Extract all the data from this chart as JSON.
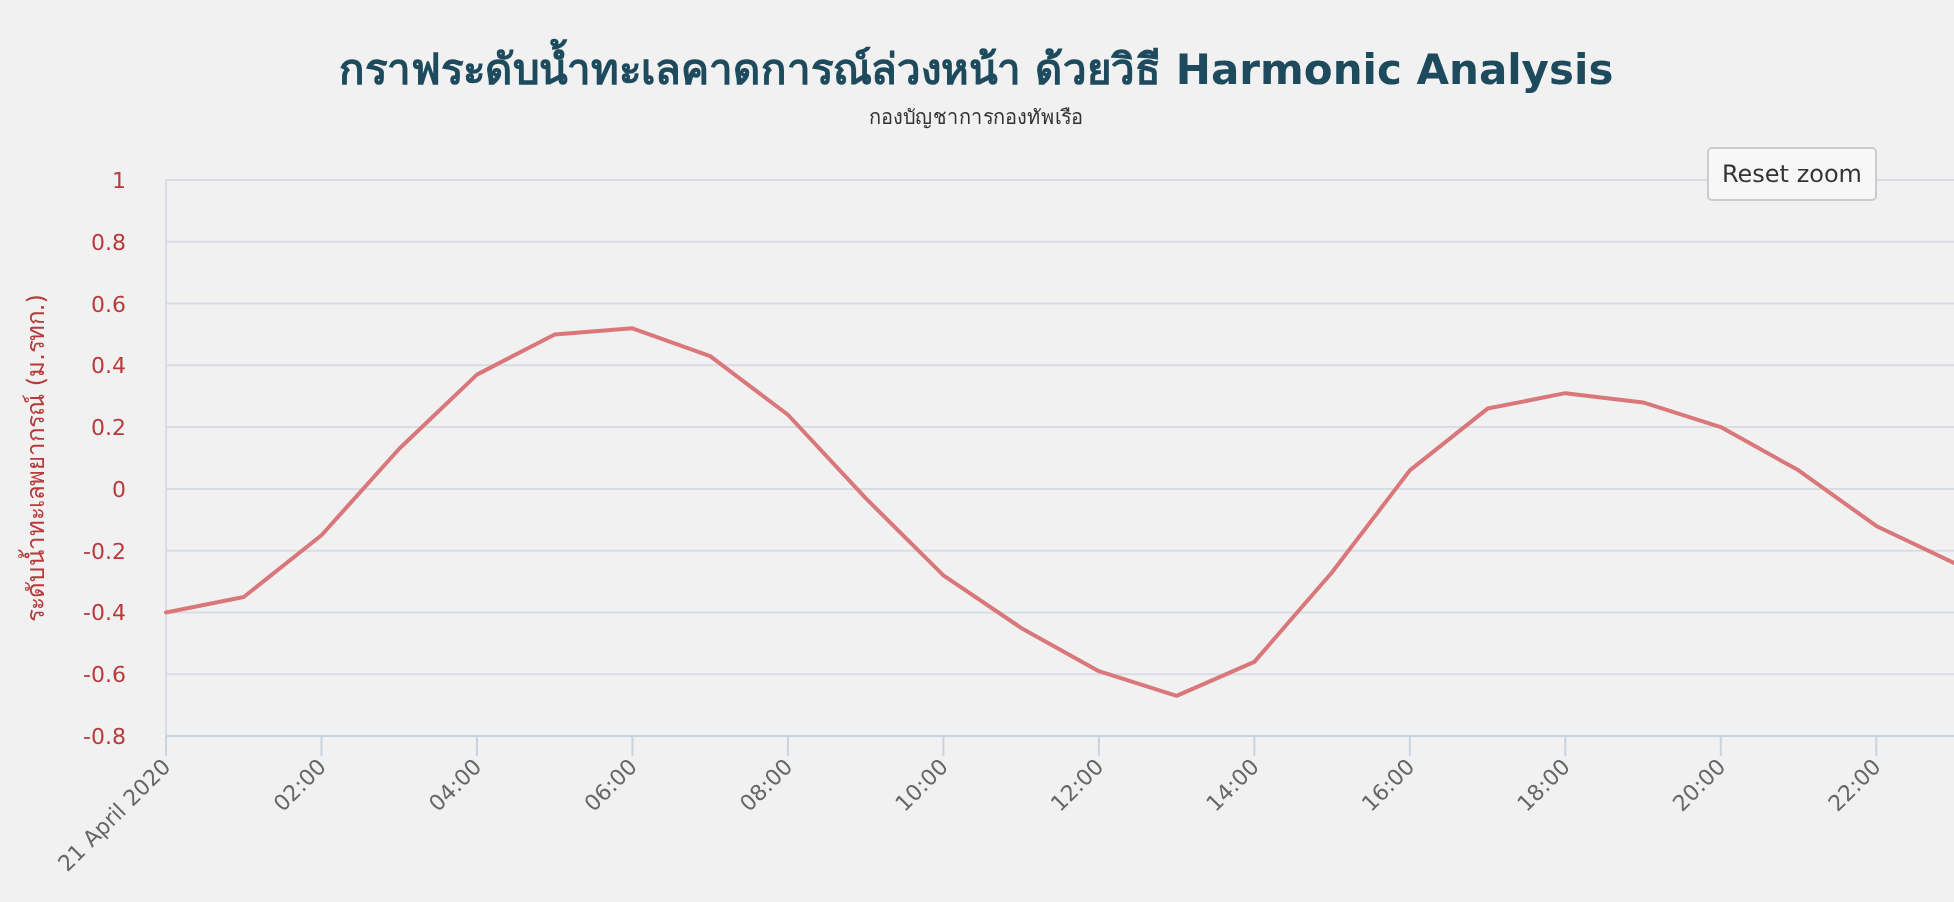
{
  "chart_data": {
    "type": "line",
    "title": "กราฟระดับน้ำทะเลคาดการณ์ล่วงหน้า ด้วยวิธี Harmonic Analysis",
    "subtitle": "กองบัญชาการกองทัพเรือ",
    "ylabel": "ระดับน้ำทะเลพยากรณ์ (ม.รทก.)",
    "annotations": [
      "Reset zoom"
    ],
    "x": [
      "2020-04-21T00:00",
      "2020-04-21T01:00",
      "2020-04-21T02:00",
      "2020-04-21T03:00",
      "2020-04-21T04:00",
      "2020-04-21T05:00",
      "2020-04-21T06:00",
      "2020-04-21T07:00",
      "2020-04-21T08:00",
      "2020-04-21T09:00",
      "2020-04-21T10:00",
      "2020-04-21T11:00",
      "2020-04-21T12:00",
      "2020-04-21T13:00",
      "2020-04-21T14:00",
      "2020-04-21T15:00",
      "2020-04-21T16:00",
      "2020-04-21T17:00",
      "2020-04-21T18:00",
      "2020-04-21T19:00",
      "2020-04-21T20:00",
      "2020-04-21T21:00",
      "2020-04-21T22:00",
      "2020-04-21T23:00"
    ],
    "series": [
      {
        "color": "#d9777b",
        "values": [
          -0.4,
          -0.35,
          -0.15,
          0.13,
          0.37,
          0.5,
          0.52,
          0.43,
          0.24,
          -0.03,
          -0.28,
          -0.45,
          -0.59,
          -0.67,
          -0.56,
          -0.27,
          0.06,
          0.26,
          0.31,
          0.28,
          0.2,
          0.06,
          -0.12,
          -0.24
        ]
      }
    ],
    "xlim": [
      "2020-04-21T00:00",
      "2020-04-21T23:00"
    ],
    "xticks": [
      {
        "value": "2020-04-21T00:00",
        "label": "21 April 2020"
      },
      {
        "value": "2020-04-21T02:00",
        "label": "02:00"
      },
      {
        "value": "2020-04-21T04:00",
        "label": "04:00"
      },
      {
        "value": "2020-04-21T06:00",
        "label": "06:00"
      },
      {
        "value": "2020-04-21T08:00",
        "label": "08:00"
      },
      {
        "value": "2020-04-21T10:00",
        "label": "10:00"
      },
      {
        "value": "2020-04-21T12:00",
        "label": "12:00"
      },
      {
        "value": "2020-04-21T14:00",
        "label": "14:00"
      },
      {
        "value": "2020-04-21T16:00",
        "label": "16:00"
      },
      {
        "value": "2020-04-21T18:00",
        "label": "18:00"
      },
      {
        "value": "2020-04-21T20:00",
        "label": "20:00"
      },
      {
        "value": "2020-04-21T22:00",
        "label": "22:00"
      }
    ],
    "ylim": [
      -0.8,
      1
    ],
    "yticks": [
      -0.8,
      -0.6,
      -0.4,
      -0.2,
      0,
      0.2,
      0.4,
      0.6,
      0.8,
      1
    ],
    "grid": "y",
    "marker": "none",
    "line_style": "solid"
  }
}
